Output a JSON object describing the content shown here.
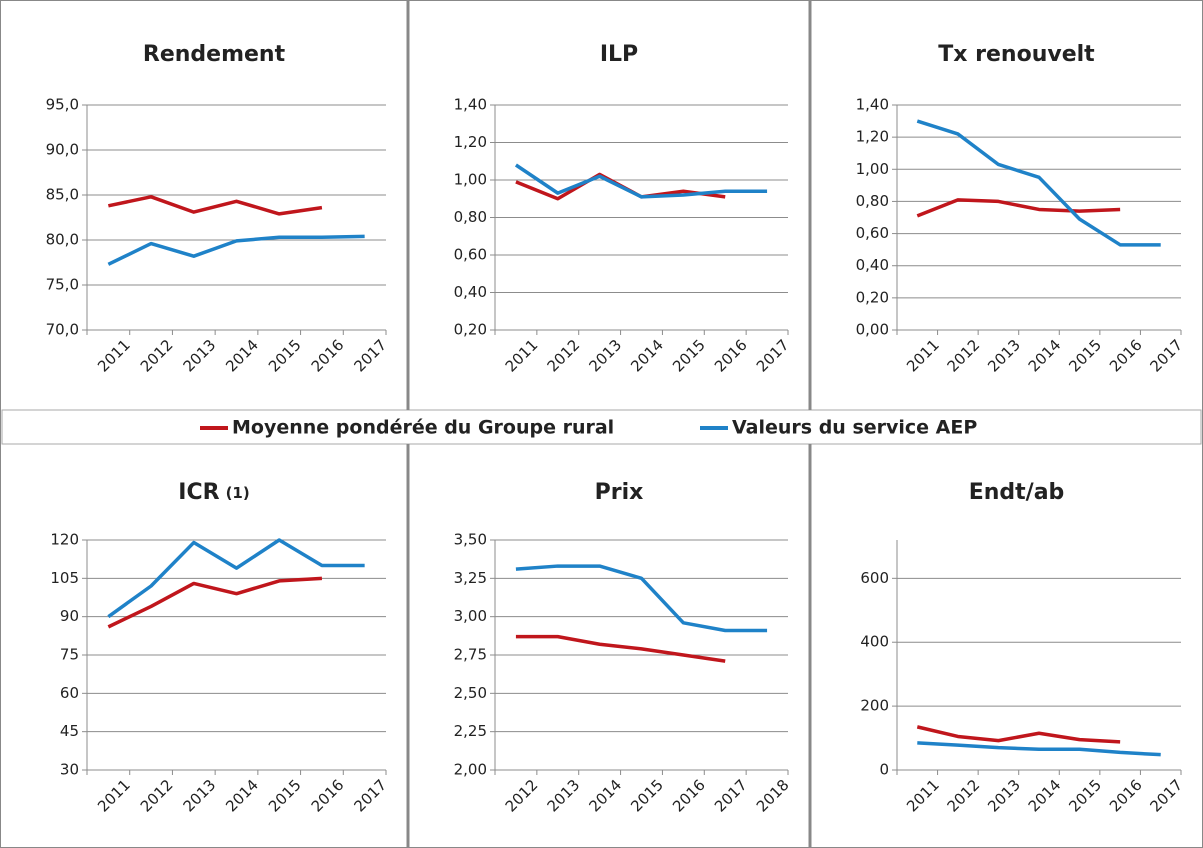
{
  "legend": [
    {
      "name": "Moyenne pondérée du Groupe rural",
      "color": "#c0161c"
    },
    {
      "name": "Valeurs du service AEP",
      "color": "#1f82c8"
    }
  ],
  "chart_data": [
    {
      "type": "line",
      "title": "Rendement",
      "categories": [
        "2011",
        "2012",
        "2013",
        "2014",
        "2015",
        "2016",
        "2017"
      ],
      "series": [
        {
          "values": [
            83.8,
            84.8,
            83.1,
            84.3,
            82.9,
            83.6,
            null
          ]
        },
        {
          "values": [
            77.3,
            79.6,
            78.2,
            79.9,
            80.3,
            80.3,
            80.4
          ]
        }
      ],
      "ylim": [
        70,
        95
      ],
      "yticks": [
        {
          "value": 70,
          "label": "70,0"
        },
        {
          "value": 75,
          "label": "75,0"
        },
        {
          "value": 80,
          "label": "80,0"
        },
        {
          "value": 85,
          "label": "85,0"
        },
        {
          "value": 90,
          "label": "90,0"
        },
        {
          "value": 95,
          "label": "95,0"
        }
      ],
      "grid": true
    },
    {
      "type": "line",
      "title": "ILP",
      "categories": [
        "2011",
        "2012",
        "2013",
        "2014",
        "2015",
        "2016",
        "2017"
      ],
      "series": [
        {
          "values": [
            0.99,
            0.9,
            1.03,
            0.91,
            0.94,
            0.91,
            null
          ]
        },
        {
          "values": [
            1.08,
            0.93,
            1.02,
            0.91,
            0.92,
            0.94,
            0.94
          ]
        }
      ],
      "ylim": [
        0.2,
        1.4
      ],
      "yticks": [
        {
          "value": 0.2,
          "label": "0,20"
        },
        {
          "value": 0.4,
          "label": "0,40"
        },
        {
          "value": 0.6,
          "label": "0,60"
        },
        {
          "value": 0.8,
          "label": "0,80"
        },
        {
          "value": 1.0,
          "label": "1,00"
        },
        {
          "value": 1.2,
          "label": "1,20"
        },
        {
          "value": 1.4,
          "label": "1,40"
        }
      ],
      "grid": true
    },
    {
      "type": "line",
      "title": "Tx renouvelt",
      "categories": [
        "2011",
        "2012",
        "2013",
        "2014",
        "2015",
        "2016",
        "2017"
      ],
      "series": [
        {
          "values": [
            0.71,
            0.81,
            0.8,
            0.75,
            0.74,
            0.75,
            null
          ]
        },
        {
          "values": [
            1.3,
            1.22,
            1.03,
            0.95,
            0.69,
            0.53,
            0.53
          ]
        }
      ],
      "ylim": [
        0,
        1.4
      ],
      "yticks": [
        {
          "value": 0,
          "label": "0,00"
        },
        {
          "value": 0.2,
          "label": "0,20"
        },
        {
          "value": 0.4,
          "label": "0,40"
        },
        {
          "value": 0.6,
          "label": "0,60"
        },
        {
          "value": 0.8,
          "label": "0,80"
        },
        {
          "value": 1.0,
          "label": "1,00"
        },
        {
          "value": 1.2,
          "label": "1,20"
        },
        {
          "value": 1.4,
          "label": "1,40"
        }
      ],
      "grid": true
    },
    {
      "type": "line",
      "title": "ICR",
      "title_note": "(1)",
      "categories": [
        "2011",
        "2012",
        "2013",
        "2014",
        "2015",
        "2016",
        "2017"
      ],
      "series": [
        {
          "values": [
            86,
            94,
            103,
            99,
            104,
            105,
            null
          ]
        },
        {
          "values": [
            90,
            102,
            119,
            109,
            120,
            110,
            110
          ]
        }
      ],
      "ylim": [
        30,
        120
      ],
      "yticks": [
        30,
        45,
        60,
        75,
        90,
        105,
        120
      ],
      "grid": true
    },
    {
      "type": "line",
      "title": "Prix",
      "categories": [
        "2012",
        "2013",
        "2014",
        "2015",
        "2016",
        "2017",
        "2018"
      ],
      "series": [
        {
          "values": [
            2.87,
            2.87,
            2.82,
            2.79,
            2.75,
            2.71,
            null
          ]
        },
        {
          "values": [
            3.31,
            3.33,
            3.33,
            3.25,
            2.96,
            2.91,
            2.91
          ]
        }
      ],
      "ylim": [
        2,
        3.5
      ],
      "yticks": [
        {
          "value": 2,
          "label": "2,00"
        },
        {
          "value": 2.25,
          "label": "2,25"
        },
        {
          "value": 2.5,
          "label": "2,50"
        },
        {
          "value": 2.75,
          "label": "2,75"
        },
        {
          "value": 3,
          "label": "3,00"
        },
        {
          "value": 3.25,
          "label": "3,25"
        },
        {
          "value": 3.5,
          "label": "3,50"
        }
      ],
      "grid": true
    },
    {
      "type": "line",
      "title": "Endt/ab",
      "categories": [
        "2011",
        "2012",
        "2013",
        "2014",
        "2015",
        "2016",
        "2017"
      ],
      "series": [
        {
          "values": [
            135,
            105,
            92,
            115,
            95,
            88,
            null
          ]
        },
        {
          "values": [
            85,
            78,
            70,
            65,
            65,
            55,
            48
          ]
        }
      ],
      "ylim": [
        0,
        720
      ],
      "yticks": [
        0,
        200,
        400,
        600
      ],
      "grid": true
    }
  ]
}
